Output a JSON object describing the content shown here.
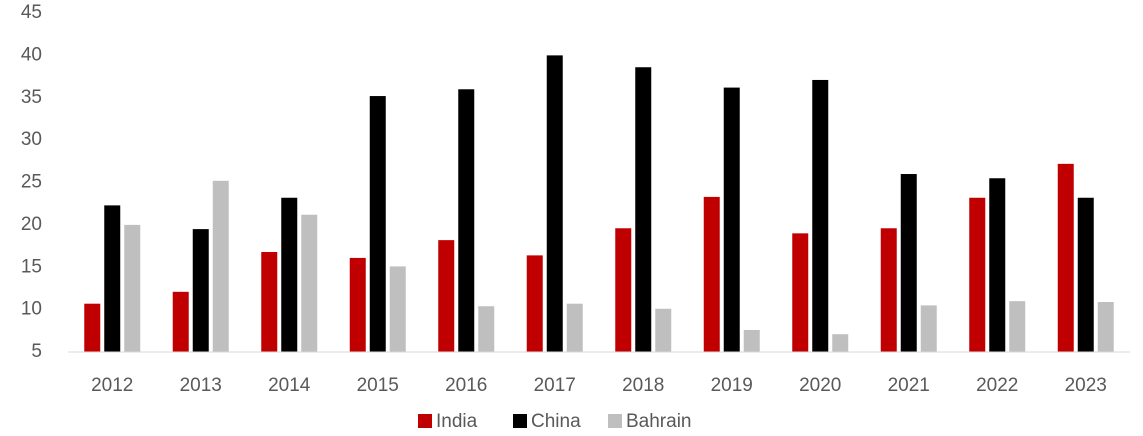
{
  "chart_data": {
    "type": "bar",
    "categories": [
      "2012",
      "2013",
      "2014",
      "2015",
      "2016",
      "2017",
      "2018",
      "2019",
      "2020",
      "2021",
      "2022",
      "2023"
    ],
    "series": [
      {
        "name": "India",
        "color": "#c00000",
        "values": [
          10.7,
          12.1,
          16.8,
          16.1,
          18.2,
          16.4,
          19.6,
          23.3,
          19.0,
          19.6,
          23.2,
          27.2
        ]
      },
      {
        "name": "China",
        "color": "#000000",
        "values": [
          22.3,
          19.5,
          23.2,
          35.2,
          36.0,
          40.0,
          38.6,
          36.2,
          37.1,
          26.0,
          25.5,
          23.2
        ]
      },
      {
        "name": "Bahrain",
        "color": "#bfbfbf",
        "values": [
          20.0,
          25.2,
          21.2,
          15.1,
          10.4,
          10.7,
          10.1,
          7.6,
          7.1,
          10.5,
          11.0,
          10.9
        ]
      }
    ],
    "ylim": [
      5,
      45
    ],
    "yticks": [
      5,
      10,
      15,
      20,
      25,
      30,
      35,
      40,
      45
    ],
    "grid": false,
    "legend": "bottom"
  }
}
